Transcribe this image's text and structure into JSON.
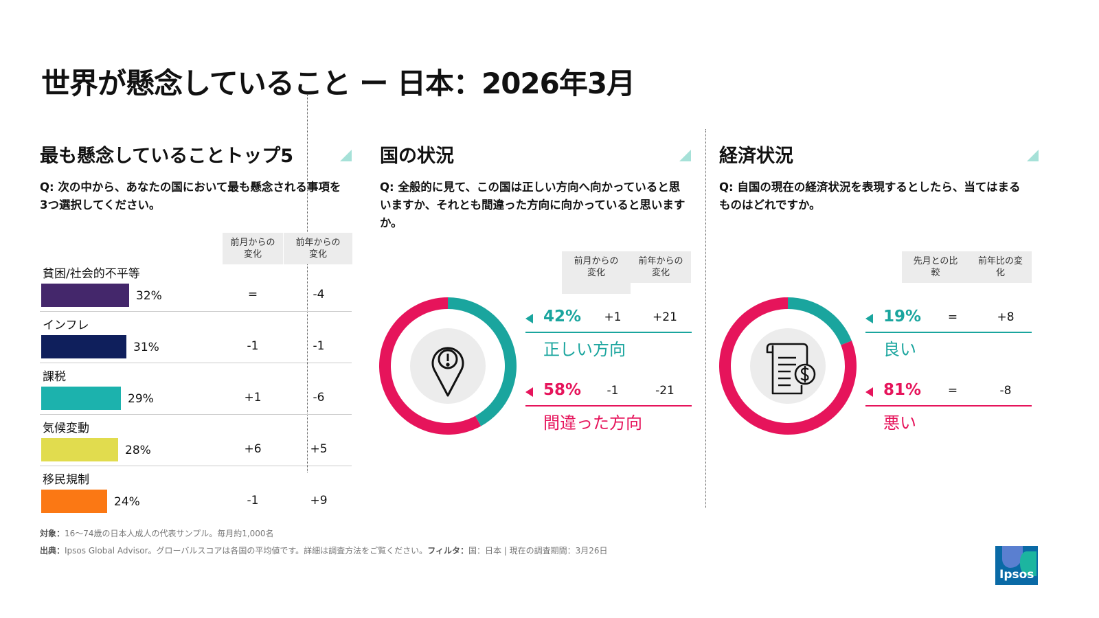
{
  "title": "世界が懸念していること ー 日本：2026年3月",
  "section1": {
    "title": "最も懸念していることトップ5",
    "question": "Q: 次の中から、あなたの国において最も懸念される事項を3つ選択してください。",
    "col_head_1": "前月からの変化",
    "col_head_2": "前年からの変化"
  },
  "chart_data": [
    {
      "type": "bar",
      "title": "最も懸念していることトップ5",
      "categories": [
        "貧困/社会的不平等",
        "インフレ",
        "課税",
        "気候変動",
        "移民規制"
      ],
      "values": [
        32,
        31,
        29,
        28,
        24
      ],
      "value_labels": [
        "32%",
        "31%",
        "29%",
        "28%",
        "24%"
      ],
      "colors": [
        "#44276b",
        "#0f1f5c",
        "#1cb2ad",
        "#e1dc4e",
        "#fb7814"
      ],
      "change_month": [
        "=",
        "-1",
        "+1",
        "+6",
        "-1"
      ],
      "change_year": [
        "-4",
        "-1",
        "-6",
        "+5",
        "+9"
      ],
      "xlim": [
        0,
        100
      ]
    },
    {
      "type": "pie",
      "title": "国の状況",
      "labels": [
        "正しい方向",
        "間違った方向"
      ],
      "values": [
        42,
        58
      ],
      "colors": [
        "#1aa59e",
        "#e6145b"
      ]
    },
    {
      "type": "pie",
      "title": "経済状況",
      "labels": [
        "良い",
        "悪い"
      ],
      "values": [
        19,
        81
      ],
      "colors": [
        "#1aa59e",
        "#e6145b"
      ]
    }
  ],
  "section2": {
    "title": "国の状況",
    "question": "Q: 全般的に見て、この国は正しい方向へ向かっていると思いますか、それとも間違った方向に向かっていると思いますか。",
    "col_head_1": "前月からの変化",
    "col_head_2": "前年からの変化",
    "results": [
      {
        "pct": "42%",
        "label": "正しい方向",
        "chg1": "+1",
        "chg2": "+21",
        "color": "#1aa59e"
      },
      {
        "pct": "58%",
        "label": "間違った方向",
        "chg1": "-1",
        "chg2": "-21",
        "color": "#e6145b"
      }
    ],
    "icon": "map-pin-alert-icon"
  },
  "section3": {
    "title": "経済状況",
    "question": "Q: 自国の現在の経済状況を表現するとしたら、当てはまるものはどれですか。",
    "col_head_1": "先月との比較",
    "col_head_2": "前年比の変化",
    "results": [
      {
        "pct": "19%",
        "label": "良い",
        "chg1": "=",
        "chg2": "+8",
        "color": "#1aa59e"
      },
      {
        "pct": "81%",
        "label": "悪い",
        "chg1": "=",
        "chg2": "-8",
        "color": "#e6145b"
      }
    ],
    "icon": "document-dollar-icon"
  },
  "footer": {
    "target_label": "対象：",
    "target_text": "16～74歳の日本人成人の代表サンプル。毎月約1,000名",
    "source_label": "出典：",
    "source_text": "Ipsos Global Advisor。グローバルスコアは各国の平均値です。詳細は調査方法をご覧ください。",
    "filter_label": "フィルタ：",
    "filter_text": "国：日本 | 現在の調査期間：3月26日"
  },
  "logo": {
    "text": "Ipsos",
    "color": "#0a6aa6"
  }
}
